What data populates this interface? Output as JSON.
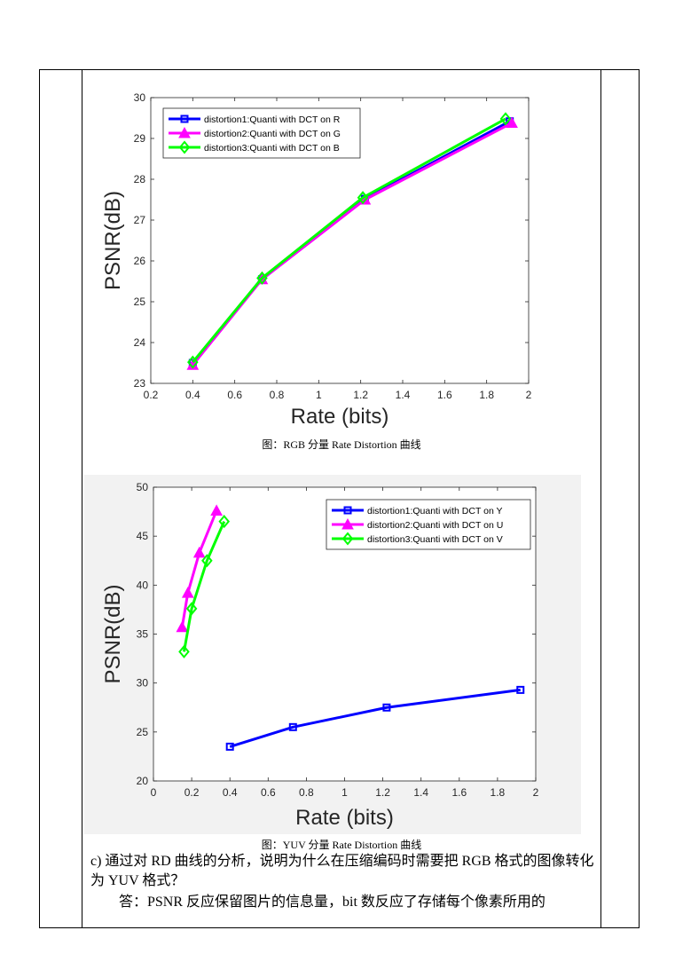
{
  "chart_data": [
    {
      "type": "line",
      "xlabel": "Rate (bits)",
      "ylabel": "PSNR(dB)",
      "xlim": [
        0.2,
        2
      ],
      "ylim": [
        23,
        30
      ],
      "xticks": [
        "0.2",
        "0.4",
        "0.6",
        "0.8",
        "1",
        "1.2",
        "1.4",
        "1.6",
        "1.8",
        "2"
      ],
      "yticks": [
        "23",
        "24",
        "25",
        "26",
        "27",
        "28",
        "29",
        "30"
      ],
      "legend": "top-left",
      "grid": false,
      "series": [
        {
          "name": "distortion1:Quanti with DCT on R",
          "color": "#0000ff",
          "marker": "square",
          "x": [
            0.4,
            0.73,
            1.22,
            1.91
          ],
          "y": [
            23.5,
            25.55,
            27.52,
            29.42
          ]
        },
        {
          "name": "distortion2:Quanti with DCT on G",
          "color": "#ff00ff",
          "marker": "triangle",
          "x": [
            0.4,
            0.73,
            1.22,
            1.92
          ],
          "y": [
            23.45,
            25.55,
            27.5,
            29.38
          ]
        },
        {
          "name": "distortion3:Quanti with DCT on B",
          "color": "#00ff00",
          "marker": "diamond",
          "x": [
            0.4,
            0.73,
            1.21,
            1.89
          ],
          "y": [
            23.52,
            25.58,
            27.55,
            29.48
          ]
        }
      ]
    },
    {
      "type": "line",
      "xlabel": "Rate (bits)",
      "ylabel": "PSNR(dB)",
      "xlim": [
        0,
        2
      ],
      "ylim": [
        20,
        50
      ],
      "xticks": [
        "0",
        "0.2",
        "0.4",
        "0.6",
        "0.8",
        "1",
        "1.2",
        "1.4",
        "1.6",
        "1.8",
        "2"
      ],
      "yticks": [
        "20",
        "25",
        "30",
        "35",
        "40",
        "45",
        "50"
      ],
      "legend": "top-right",
      "grid": false,
      "series": [
        {
          "name": "distortion1:Quanti with DCT on Y",
          "color": "#0000ff",
          "marker": "square",
          "x": [
            0.4,
            0.73,
            1.22,
            1.92
          ],
          "y": [
            23.5,
            25.5,
            27.5,
            29.3
          ]
        },
        {
          "name": "distortion2:Quanti with DCT on U",
          "color": "#ff00ff",
          "marker": "triangle",
          "x": [
            0.15,
            0.18,
            0.24,
            0.33
          ],
          "y": [
            35.7,
            39.2,
            43.3,
            47.6
          ]
        },
        {
          "name": "distortion3:Quanti with DCT on V",
          "color": "#00ff00",
          "marker": "diamond",
          "x": [
            0.16,
            0.2,
            0.28,
            0.37
          ],
          "y": [
            33.2,
            37.6,
            42.5,
            46.5
          ]
        }
      ]
    }
  ],
  "captions": {
    "rgb": "图：RGB 分量 Rate Distortion 曲线",
    "yuv": "图：YUV 分量 Rate Distortion 曲线"
  },
  "text": {
    "question": "c) 通过对 RD 曲线的分析，说明为什么在压缩编码时需要把 RGB 格式的图像转化为 YUV 格式？",
    "answer": "答：PSNR 反应保留图片的信息量，bit 数反应了存储每个像素所用的"
  }
}
